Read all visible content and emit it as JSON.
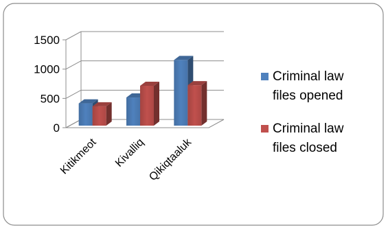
{
  "chart_data": {
    "type": "bar",
    "style": "3d-clustered-column",
    "categories": [
      "Kitikmeot",
      "Kivalliq",
      "Qikiqtaaluk"
    ],
    "series": [
      {
        "name": "Criminal law files opened",
        "values": [
          380,
          480,
          1120
        ],
        "color": "#4F81BD"
      },
      {
        "name": "Criminal law files closed",
        "values": [
          330,
          680,
          690
        ],
        "color": "#C0504D"
      }
    ],
    "yticks": [
      0,
      500,
      1000,
      1500
    ],
    "ylim": [
      0,
      1500
    ],
    "grid": true,
    "legend_position": "right",
    "legend_lines": [
      [
        "Criminal law",
        "files opened"
      ],
      [
        "Criminal law",
        "files closed"
      ]
    ]
  }
}
